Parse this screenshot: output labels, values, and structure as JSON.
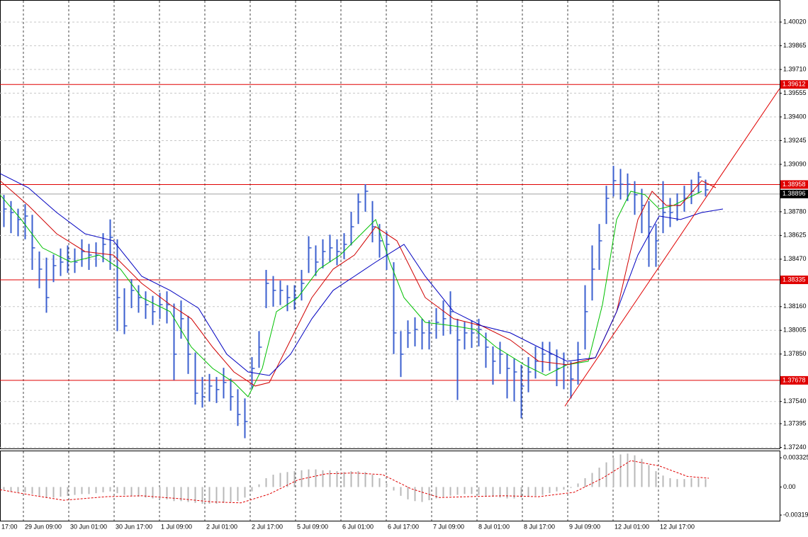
{
  "chart_data": [
    {
      "type": "ohlc",
      "color": "#3b5fcf",
      "xlim": [
        -0.5,
        109.5
      ],
      "ylim": [
        1.37233,
        1.40164
      ],
      "grid": true,
      "yticks": [
        {
          "value": 1.4002,
          "label": "1.40020"
        },
        1.39865,
        {
          "value": 1.3971,
          "label": "1.39710"
        },
        1.39555,
        {
          "value": 1.394,
          "label": "1.39400"
        },
        1.39245,
        {
          "value": 1.3909,
          "label": "1.39090"
        },
        {
          "value": 1.3878,
          "label": "1.38780"
        },
        1.38625,
        {
          "value": 1.3847,
          "label": "1.38470"
        },
        {
          "value": 1.3816,
          "label": "1.38160"
        },
        1.38005,
        {
          "value": 1.3785,
          "label": "1.37850"
        },
        {
          "value": 1.3754,
          "label": "1.37540"
        },
        1.37395,
        {
          "value": 1.3724,
          "label": "1.37240"
        }
      ],
      "xticks": [
        {
          "value": -3.6,
          "label": "17:00"
        },
        {
          "value": 2.8,
          "label": "29 Jun 09:00"
        },
        {
          "value": 9.2,
          "label": "30 Jun 01:00"
        },
        {
          "value": 15.6,
          "label": "30 Jun 17:00"
        },
        {
          "value": 22.0,
          "label": "1 Jul 09:00"
        },
        {
          "value": 28.4,
          "label": "2 Jul 01:00"
        },
        {
          "value": 34.8,
          "label": "2 Jul 17:00"
        },
        {
          "value": 41.2,
          "label": "5 Jul 09:00"
        },
        {
          "value": 47.6,
          "label": "6 Jul 01:00"
        },
        {
          "value": 54.0,
          "label": "6 Jul 17:00"
        },
        {
          "value": 60.4,
          "label": "7 Jul 09:00"
        },
        {
          "value": 66.8,
          "label": "8 Jul 01:00"
        },
        {
          "value": 73.2,
          "label": "8 Jul 17:00"
        },
        {
          "value": 79.6,
          "label": "9 Jul 09:00"
        },
        {
          "value": 86.0,
          "label": "12 Jul 01:00"
        },
        {
          "value": 92.4,
          "label": "12 Jul 17:00"
        }
      ],
      "high": [
        1.3889,
        1.3885,
        1.388,
        1.3883,
        1.3876,
        1.3852,
        1.3848,
        1.385,
        1.3854,
        1.3856,
        1.3854,
        1.386,
        1.3857,
        1.3858,
        1.3864,
        1.3873,
        1.386,
        1.3828,
        1.3834,
        1.383,
        1.3826,
        1.3823,
        1.3825,
        1.3826,
        1.3818,
        1.382,
        1.381,
        1.3786,
        1.377,
        1.3772,
        1.377,
        1.3776,
        1.3769,
        1.3762,
        1.3756,
        1.3783,
        1.38,
        1.384,
        1.3836,
        1.3833,
        1.383,
        1.383,
        1.384,
        1.3862,
        1.3856,
        1.386,
        1.3863,
        1.386,
        1.3864,
        1.3878,
        1.389,
        1.3896,
        1.3885,
        1.387,
        1.3865,
        1.3845,
        1.38,
        1.3807,
        1.3809,
        1.3808,
        1.3807,
        1.3815,
        1.382,
        1.3826,
        1.3808,
        1.3806,
        1.3807,
        1.3808,
        1.3799,
        1.379,
        1.3793,
        1.3785,
        1.3782,
        1.3778,
        1.3783,
        1.379,
        1.3793,
        1.3793,
        1.3788,
        1.3786,
        1.378,
        1.3793,
        1.383,
        1.3856,
        1.387,
        1.3895,
        1.3908,
        1.3906,
        1.3903,
        1.3898,
        1.3893,
        1.3885,
        1.387,
        1.3898,
        1.3887,
        1.389,
        1.3895,
        1.3899,
        1.3904,
        1.3899
      ],
      "low": [
        1.3868,
        1.3864,
        1.3862,
        1.386,
        1.384,
        1.3828,
        1.3812,
        1.3832,
        1.3836,
        1.3838,
        1.3838,
        1.3842,
        1.384,
        1.3842,
        1.3845,
        1.384,
        1.38,
        1.3798,
        1.3815,
        1.3812,
        1.3808,
        1.3804,
        1.3808,
        1.3805,
        1.3768,
        1.3795,
        1.3772,
        1.3752,
        1.375,
        1.3754,
        1.3753,
        1.3756,
        1.3748,
        1.3738,
        1.373,
        1.3762,
        1.3776,
        1.3815,
        1.3816,
        1.3817,
        1.3813,
        1.3814,
        1.382,
        1.3838,
        1.3836,
        1.3841,
        1.3845,
        1.3843,
        1.3847,
        1.3856,
        1.387,
        1.3878,
        1.3858,
        1.3848,
        1.384,
        1.3785,
        1.377,
        1.3789,
        1.379,
        1.3788,
        1.3788,
        1.3795,
        1.3797,
        1.3798,
        1.3755,
        1.3788,
        1.3789,
        1.379,
        1.3776,
        1.3765,
        1.3772,
        1.3756,
        1.3754,
        1.3743,
        1.376,
        1.3769,
        1.3773,
        1.3774,
        1.3764,
        1.3762,
        1.3756,
        1.3765,
        1.3788,
        1.382,
        1.384,
        1.387,
        1.3888,
        1.3886,
        1.3885,
        1.3876,
        1.3864,
        1.3842,
        1.3842,
        1.3864,
        1.3868,
        1.3872,
        1.3878,
        1.3883,
        1.389,
        1.3888
      ],
      "close": [
        1.38798,
        1.38775,
        1.38729,
        1.38752,
        1.38544,
        1.38405,
        1.38219,
        1.38428,
        1.38451,
        1.38474,
        1.38451,
        1.3852,
        1.38497,
        1.38497,
        1.38567,
        1.38613,
        1.38219,
        1.38034,
        1.38266,
        1.38219,
        1.38173,
        1.38127,
        1.38173,
        1.38173,
        1.37849,
        1.38081,
        1.37849,
        1.37594,
        1.37571,
        1.37641,
        1.37618,
        1.37664,
        1.37571,
        1.37455,
        1.37409,
        1.37756,
        1.37895,
        1.38312,
        1.38266,
        1.38266,
        1.38219,
        1.38219,
        1.38312,
        1.38544,
        1.38451,
        1.3852,
        1.38544,
        1.3852,
        1.38567,
        1.38682,
        1.38844,
        1.38914,
        1.38682,
        1.3859,
        1.38567,
        1.37988,
        1.37849,
        1.37988,
        1.38011,
        1.37988,
        1.37988,
        1.38057,
        1.38081,
        1.38127,
        1.37942,
        1.37988,
        1.37988,
        1.38011,
        1.37895,
        1.37803,
        1.37849,
        1.37756,
        1.37733,
        1.37641,
        1.37733,
        1.37803,
        1.37849,
        1.37849,
        1.37756,
        1.3778,
        1.37687,
        1.37849,
        1.38127,
        1.38405,
        1.3859,
        1.38868,
        1.38983,
        1.3896,
        1.3896,
        1.38891,
        1.38821,
        1.38682,
        1.3859,
        1.38775,
        1.38775,
        1.38821,
        1.38868,
        1.38914,
        1.39007,
        1.38923
      ],
      "moving_averages": [
        {
          "color": "#00c000",
          "x": [
            -0.5,
            2.5,
            5.5,
            9.5,
            13.5,
            16.5,
            19.5,
            23.5,
            26.5,
            29.5,
            32.5,
            34.5,
            36.5,
            38.5,
            41.5,
            44.5,
            47.5,
            50.5,
            52.5,
            54.5,
            56.5,
            59.5,
            63.5,
            66.5,
            69.5,
            73.5,
            76.5,
            79.5,
            82.5,
            84.5,
            86.5,
            88.5,
            90.5,
            92.5,
            94.5,
            96.5,
            98.5
          ],
          "values": [
            1.38891,
            1.38729,
            1.38544,
            1.38451,
            1.38497,
            1.38405,
            1.38219,
            1.38127,
            1.37895,
            1.37756,
            1.37664,
            1.37571,
            1.37756,
            1.38127,
            1.38219,
            1.38405,
            1.38497,
            1.38636,
            1.38729,
            1.38451,
            1.38219,
            1.38057,
            1.38034,
            1.38011,
            1.37895,
            1.3778,
            1.3771,
            1.3778,
            1.37803,
            1.38173,
            1.38729,
            1.38914,
            1.38891,
            1.38798,
            1.38821,
            1.38868,
            1.38914
          ]
        },
        {
          "color": "#d00000",
          "x": [
            -0.5,
            3.5,
            7.5,
            11.5,
            15.5,
            19.5,
            23.5,
            26.5,
            29.5,
            32.5,
            35.5,
            37.5,
            40.5,
            43.5,
            46.5,
            49.5,
            52.5,
            55.5,
            59.5,
            63.5,
            67.5,
            71.5,
            75.5,
            79.5,
            83.5,
            86.5,
            89.5,
            91.5,
            93.5,
            95.5,
            98.5,
            100.5
          ],
          "values": [
            1.38983,
            1.38821,
            1.38636,
            1.3852,
            1.38497,
            1.38312,
            1.38173,
            1.38081,
            1.37895,
            1.37733,
            1.37641,
            1.37664,
            1.37942,
            1.38219,
            1.38405,
            1.38497,
            1.38682,
            1.3859,
            1.38219,
            1.38081,
            1.38034,
            1.37942,
            1.37803,
            1.3778,
            1.37826,
            1.38127,
            1.38729,
            1.38914,
            1.38821,
            1.38821,
            1.38983,
            1.38937
          ]
        },
        {
          "color": "#0000c0",
          "x": [
            -0.5,
            3.5,
            7.5,
            11.5,
            15.5,
            19.5,
            23.5,
            27.5,
            31.5,
            34.5,
            37.5,
            40.5,
            43.5,
            46.5,
            49.5,
            52.5,
            56.5,
            59.5,
            63.5,
            67.5,
            71.5,
            75.5,
            79.5,
            83.5,
            86.5,
            89.5,
            92.5,
            95.5,
            98.5,
            101.5
          ],
          "values": [
            1.3903,
            1.38937,
            1.38775,
            1.38636,
            1.3859,
            1.38358,
            1.38266,
            1.3815,
            1.37849,
            1.37733,
            1.3771,
            1.37849,
            1.38081,
            1.38266,
            1.38358,
            1.38451,
            1.38567,
            1.38358,
            1.38127,
            1.38034,
            1.37988,
            1.37895,
            1.37803,
            1.37826,
            1.38127,
            1.38497,
            1.38752,
            1.38729,
            1.38775,
            1.38798
          ]
        }
      ],
      "levels": {
        "color": "#e00000",
        "values": [
          1.39612,
          1.38958,
          1.38335,
          1.37678
        ]
      },
      "current_price": 1.38896,
      "trendline": {
        "color": "#e00000",
        "x": [
          79.2,
          109.5
        ],
        "values": [
          1.37509,
          1.39585
        ]
      }
    },
    {
      "type": "macd",
      "xlim": [
        -0.5,
        109.5
      ],
      "ylim": [
        -0.00383,
        0.00406
      ],
      "yticks": [
        0.003325,
        {
          "value": 0,
          "label": "0.00"
        },
        -0.00319
      ],
      "histogram": {
        "color": "#b8b8b8",
        "values": [
          -0.0003,
          -0.0005,
          -0.0006,
          -0.0006,
          -0.0008,
          -0.001,
          -0.0012,
          -0.0012,
          -0.0011,
          -0.001,
          -0.0009,
          -0.0008,
          -0.0008,
          -0.0007,
          -0.0006,
          -0.0005,
          -0.0007,
          -0.0009,
          -0.001,
          -0.0011,
          -0.0012,
          -0.0013,
          -0.0013,
          -0.0014,
          -0.0016,
          -0.0016,
          -0.0017,
          -0.0018,
          -0.0019,
          -0.0019,
          -0.0019,
          -0.0018,
          -0.0017,
          -0.0016,
          -0.0012,
          -0.0005,
          0.0003,
          0.001,
          0.0014,
          0.0016,
          0.0017,
          0.0018,
          0.0019,
          0.002,
          0.002,
          0.0019,
          0.0019,
          0.0018,
          0.0017,
          0.0018,
          0.0018,
          0.0017,
          0.0014,
          0.001,
          0.0004,
          -0.0004,
          -0.001,
          -0.0014,
          -0.0016,
          -0.0017,
          -0.0015,
          -0.0013,
          -0.0011,
          -0.001,
          -0.0009,
          -0.0008,
          -0.0008,
          -0.0009,
          -0.001,
          -0.0011,
          -0.0012,
          -0.0013,
          -0.0013,
          -0.0012,
          -0.0011,
          -0.001,
          -0.0009,
          -0.0007,
          -0.0005,
          -0.0003,
          -0.0001,
          0.0004,
          0.001,
          0.0016,
          0.0022,
          0.0028,
          0.0033,
          0.0037,
          0.0038,
          0.0036,
          0.0032,
          0.0025,
          0.0018,
          0.0013,
          0.001,
          0.0009,
          0.0009,
          0.001,
          0.001,
          0.0009
        ]
      },
      "signal": {
        "color": "#e00000",
        "x": [
          -0.5,
          4.5,
          8.5,
          14.5,
          19.5,
          24.5,
          29.5,
          33.5,
          37.5,
          41.5,
          45.5,
          49.5,
          53.5,
          57.5,
          61.5,
          65.5,
          70.5,
          75.5,
          80.5,
          84.5,
          88.5,
          92.5,
          96.5,
          99.5
        ],
        "values": [
          -0.0003,
          -0.001,
          -0.0015,
          -0.0011,
          -0.001,
          -0.0013,
          -0.0017,
          -0.0018,
          -0.0008,
          0.0008,
          0.0015,
          0.0016,
          0.0014,
          -0.0002,
          -0.0012,
          -0.0011,
          -0.001,
          -0.0011,
          -0.0006,
          0.001,
          0.003,
          0.0024,
          0.0012,
          0.001
        ]
      }
    }
  ]
}
